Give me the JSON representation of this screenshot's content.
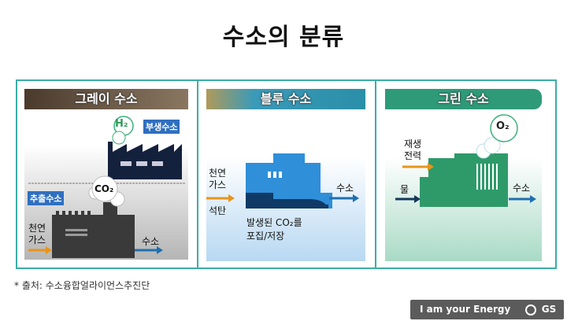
{
  "title": "수소의 분류",
  "panels": {
    "gray": {
      "header": "그레이 수소",
      "byproduct_label": "부생수소",
      "extraction_label": "추출수소",
      "h2": "H₂",
      "co2": "CO₂",
      "input": "천연\n가스",
      "output": "수소",
      "colors": {
        "header": "#5b4a3a",
        "factory": "#14213d"
      }
    },
    "blue": {
      "header": "블루 수소",
      "input1": "천연\n가스",
      "input2": "석탄",
      "note_line1": "발생된 CO₂를",
      "note_line2": "포집/저장",
      "output": "수소",
      "colors": {
        "header": "#2a8fa8",
        "machine": "#2f8fd8"
      }
    },
    "green": {
      "header": "그린 수소",
      "input1": "재생\n전력",
      "input2": "물",
      "o2": "O₂",
      "output": "수소",
      "colors": {
        "header": "#2e9a78",
        "machine": "#2e9a6a"
      }
    }
  },
  "footnote": "* 출처: 수소융합얼라이언스추진단",
  "logo": {
    "slogan": "I am your Energy",
    "brand": "GS칼텍스"
  }
}
